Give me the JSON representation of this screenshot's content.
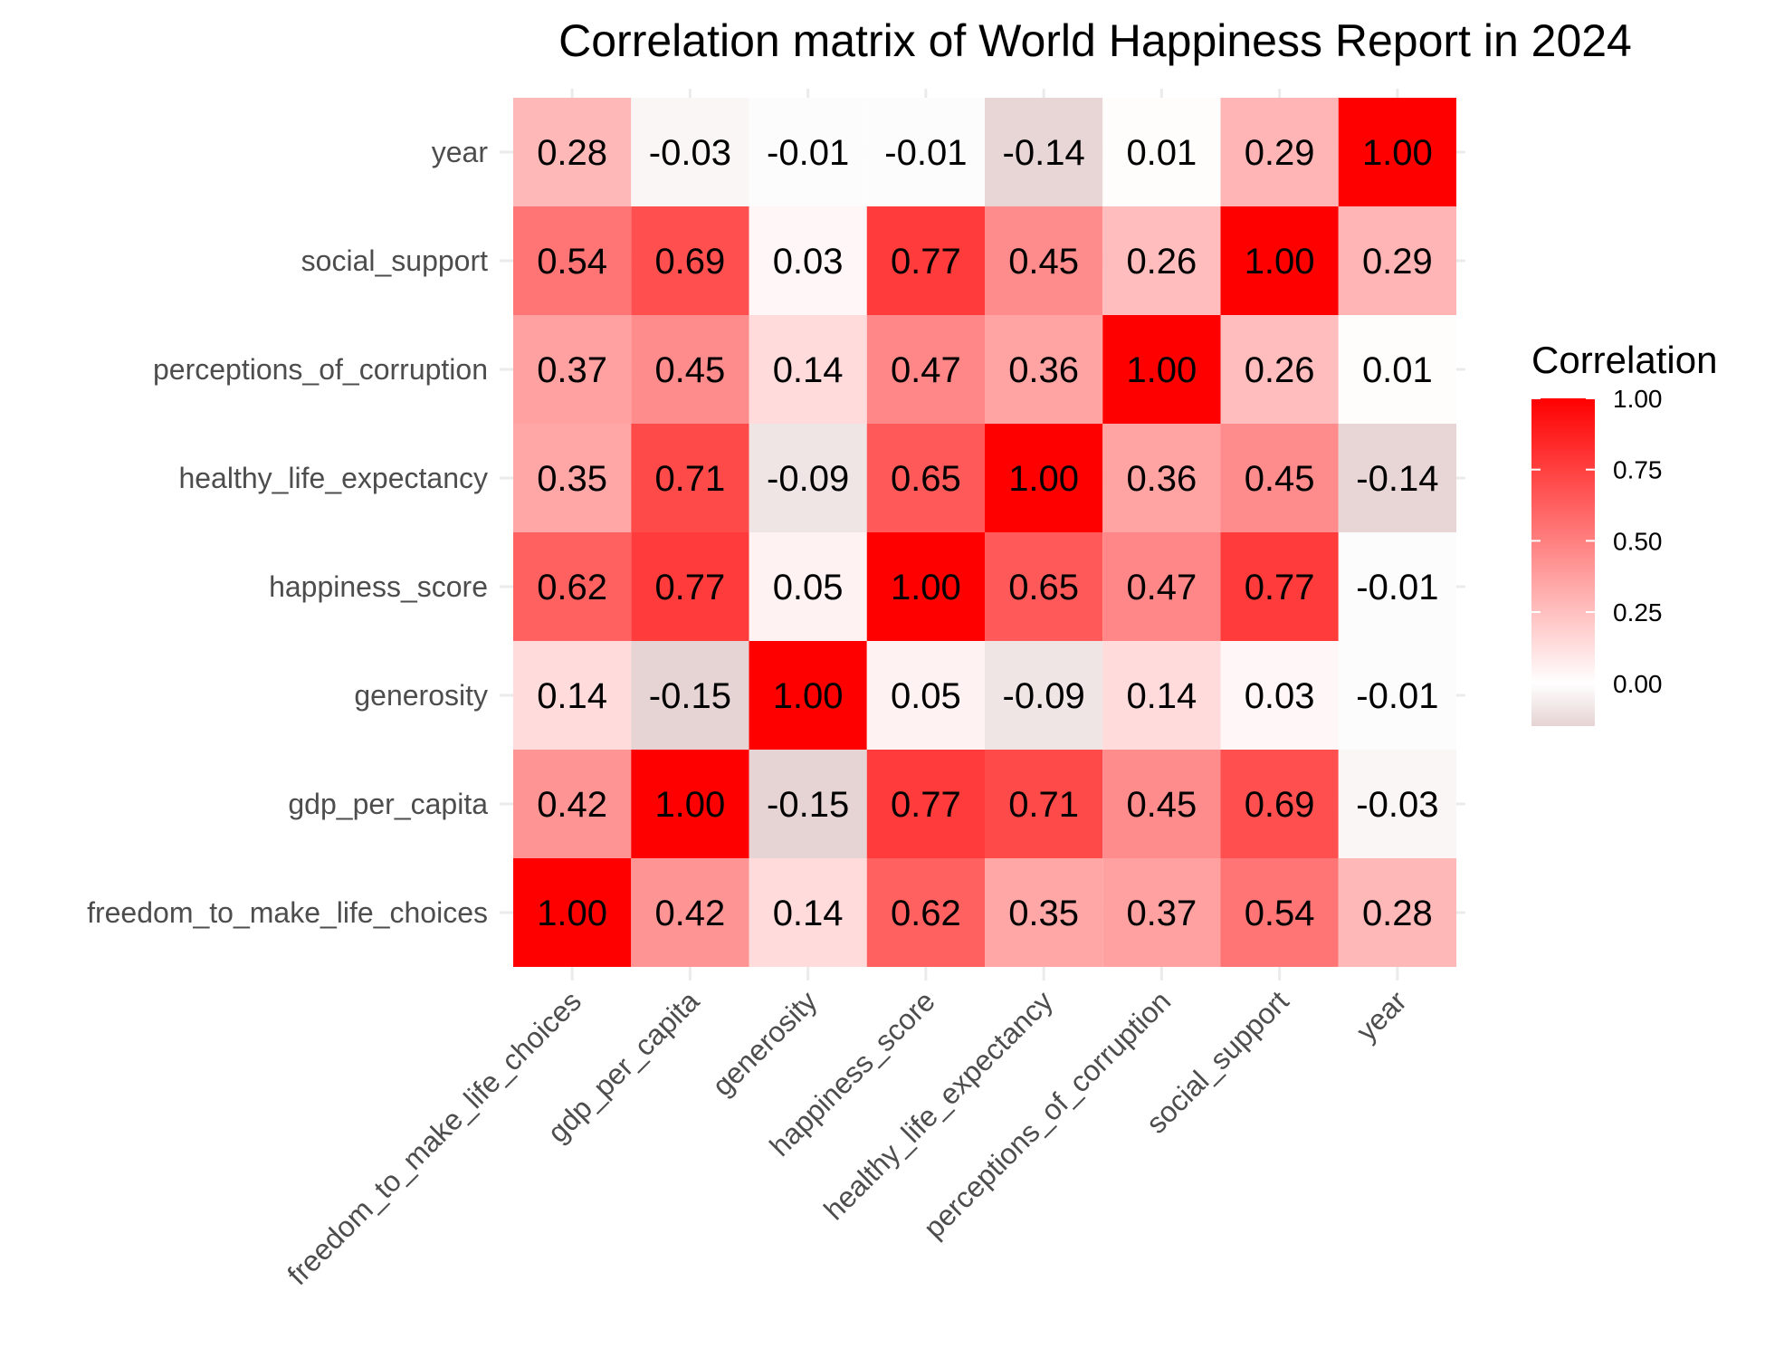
{
  "chart_data": {
    "type": "heatmap",
    "title": "Correlation matrix of World Happiness Report in 2024",
    "xlabel": "",
    "ylabel": "",
    "x_categories": [
      "freedom_to_make_life_choices",
      "gdp_per_capita",
      "generosity",
      "happiness_score",
      "healthy_life_expectancy",
      "perceptions_of_corruption",
      "social_support",
      "year"
    ],
    "y_categories": [
      "freedom_to_make_life_choices",
      "gdp_per_capita",
      "generosity",
      "happiness_score",
      "healthy_life_expectancy",
      "perceptions_of_corruption",
      "social_support",
      "year"
    ],
    "matrix": [
      [
        1.0,
        0.42,
        0.14,
        0.62,
        0.35,
        0.37,
        0.54,
        0.28
      ],
      [
        0.42,
        1.0,
        -0.15,
        0.77,
        0.71,
        0.45,
        0.69,
        -0.03
      ],
      [
        0.14,
        -0.15,
        1.0,
        0.05,
        -0.09,
        0.14,
        0.03,
        -0.01
      ],
      [
        0.62,
        0.77,
        0.05,
        1.0,
        0.65,
        0.47,
        0.77,
        -0.01
      ],
      [
        0.35,
        0.71,
        -0.09,
        0.65,
        1.0,
        0.36,
        0.45,
        -0.14
      ],
      [
        0.37,
        0.45,
        0.14,
        0.47,
        0.36,
        1.0,
        0.26,
        0.01
      ],
      [
        0.54,
        0.69,
        0.03,
        0.77,
        0.45,
        0.26,
        1.0,
        0.29
      ],
      [
        0.28,
        -0.03,
        -0.01,
        -0.01,
        -0.14,
        0.01,
        0.29,
        1.0
      ]
    ],
    "color_scale": {
      "low_color": "#e6d3d3",
      "mid_color": "#ffffff",
      "high_color": "#ff0000",
      "limits": [
        -0.15,
        1.0
      ]
    },
    "legend": {
      "title": "Correlation",
      "placement": "right",
      "ticks": [
        "1.00",
        "0.75",
        "0.50",
        "0.25",
        "0.00"
      ]
    },
    "grid": true
  }
}
